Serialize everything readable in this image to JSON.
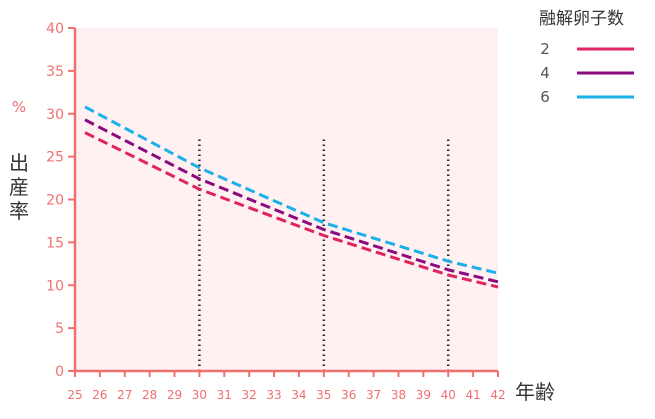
{
  "chart_data": {
    "type": "line",
    "ylabel_unit": "%",
    "ylabel": "出産率",
    "xlabel": "年齢",
    "xlim": [
      25,
      42
    ],
    "ylim": [
      0,
      40
    ],
    "x_ticks": [
      "25",
      "26",
      "27",
      "28",
      "29",
      "30",
      "31",
      "32",
      "33",
      "34",
      "35",
      "36",
      "37",
      "38",
      "39",
      "40",
      "41",
      "42"
    ],
    "y_ticks": [
      "0",
      "5",
      "10",
      "15",
      "20",
      "25",
      "30",
      "35",
      "40"
    ],
    "legend_title": "融解卵子数",
    "legend_position": "top-right",
    "grid": false,
    "reference_lines_x": [
      30,
      35,
      40
    ],
    "reference_line_top": 27,
    "series": [
      {
        "name": "2",
        "color": "#e0245e",
        "x": [
          25.4,
          30,
          35,
          40,
          42
        ],
        "values": [
          27.8,
          21.2,
          15.8,
          11.2,
          9.8
        ]
      },
      {
        "name": "4",
        "color": "#8b0a7e",
        "x": [
          25.4,
          30,
          35,
          40,
          42
        ],
        "values": [
          29.3,
          22.4,
          16.5,
          11.8,
          10.4
        ]
      },
      {
        "name": "6",
        "color": "#1ab0e8",
        "x": [
          25.4,
          30,
          35,
          40,
          42
        ],
        "values": [
          30.8,
          23.7,
          17.3,
          12.8,
          11.4
        ]
      }
    ],
    "axis_color": "#f07070",
    "plot_bg": "#fff0f2"
  }
}
